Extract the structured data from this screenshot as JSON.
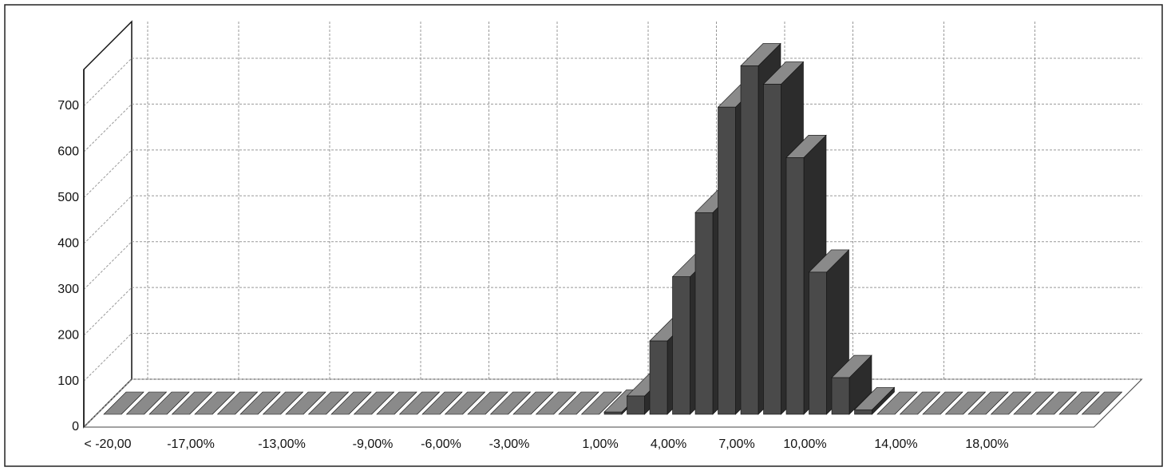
{
  "chart_data": {
    "type": "bar3d",
    "categories": [
      "< -20,00",
      null,
      null,
      null,
      "-17,00%",
      null,
      null,
      null,
      "-13,00%",
      null,
      null,
      null,
      "-9,00%",
      null,
      null,
      "-6,00%",
      null,
      null,
      "-3,00%",
      null,
      null,
      null,
      "1,00%",
      null,
      null,
      "4,00%",
      null,
      null,
      "7,00%",
      null,
      null,
      "10,00%",
      null,
      null,
      null,
      "14,00%",
      null,
      null,
      null,
      "18,00%",
      null,
      null,
      null,
      null
    ],
    "values": [
      0,
      0,
      0,
      0,
      0,
      0,
      0,
      0,
      0,
      0,
      0,
      0,
      0,
      0,
      0,
      0,
      0,
      0,
      0,
      0,
      0,
      0,
      5,
      40,
      160,
      300,
      440,
      670,
      760,
      720,
      560,
      310,
      80,
      10,
      0,
      0,
      0,
      0,
      0,
      0,
      0,
      0,
      0,
      0
    ],
    "color": "#4a4a4a",
    "ylim": [
      0,
      780
    ],
    "yticks": [
      0,
      100,
      200,
      300,
      400,
      500,
      600,
      700
    ],
    "grid": true
  }
}
